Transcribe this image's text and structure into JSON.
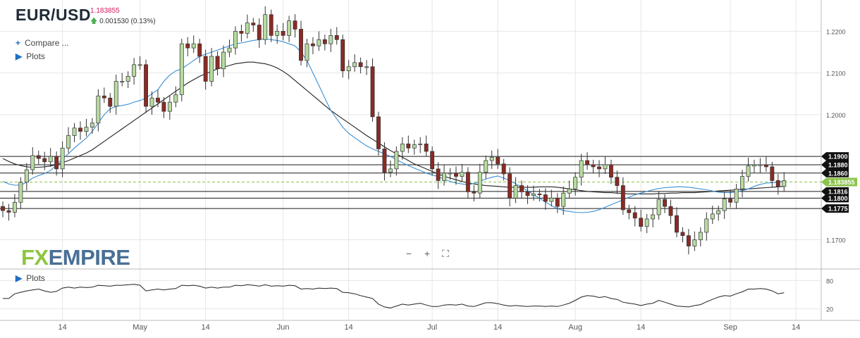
{
  "header": {
    "symbol": "EUR/USD",
    "last_price": "1.183855",
    "change": "0.001530 (0.13%)",
    "compare_label": "Compare ...",
    "plots_label": "Plots",
    "sub_plots_label": "Plots",
    "logo_fx": "FX",
    "logo_empire": "EMPIRE"
  },
  "zoom": {
    "minus": "−",
    "plus": "+",
    "fit": "⛶"
  },
  "colors": {
    "up": "#b7dba0",
    "down": "#8b2a24",
    "ema_fast": "#3b8fd3",
    "ema_slow": "#222222",
    "price_tag": "#8bc34a",
    "grid": "#e6e6e6",
    "level": "#1a1a1a",
    "current": "#8bc34a"
  },
  "chart_data": {
    "type": "candlestick",
    "title": "EUR/USD",
    "ylim": [
      1.163,
      1.2275
    ],
    "y_ticks": [
      {
        "value": 1.22,
        "label": "1.2200"
      },
      {
        "value": 1.21,
        "label": "1.2100"
      },
      {
        "value": 1.2,
        "label": "1.2000"
      },
      {
        "value": 1.17,
        "label": "1.1700"
      }
    ],
    "x_ticks": [
      {
        "index": 10,
        "label": "14"
      },
      {
        "index": 23,
        "label": "May"
      },
      {
        "index": 34,
        "label": "14"
      },
      {
        "index": 47,
        "label": "Jun"
      },
      {
        "index": 58,
        "label": "14"
      },
      {
        "index": 72,
        "label": "Jul"
      },
      {
        "index": 83,
        "label": "14"
      },
      {
        "index": 96,
        "label": "Aug"
      },
      {
        "index": 107,
        "label": "14"
      },
      {
        "index": 122,
        "label": "Sep"
      },
      {
        "index": 133,
        "label": "14"
      }
    ],
    "levels": [
      {
        "value": 1.19,
        "label": "1.1900"
      },
      {
        "value": 1.188,
        "label": "1.1880"
      },
      {
        "value": 1.186,
        "label": "1.1860"
      },
      {
        "value": 1.1816,
        "label": "1.1816"
      },
      {
        "value": 1.18,
        "label": "1.1800"
      },
      {
        "value": 1.1775,
        "label": "1.1775"
      }
    ],
    "current": {
      "value": 1.183855,
      "label": "1.183855"
    },
    "closes": [
      1.177,
      1.1766,
      1.179,
      1.1838,
      1.1868,
      1.1902,
      1.1895,
      1.1887,
      1.19,
      1.187,
      1.192,
      1.195,
      1.1968,
      1.196,
      1.197,
      1.198,
      1.2045,
      1.204,
      1.202,
      1.208,
      1.208,
      1.2092,
      1.212,
      1.212,
      1.202,
      1.204,
      1.203,
      1.2008,
      1.203,
      1.2048,
      1.217,
      1.216,
      1.217,
      1.214,
      1.208,
      1.214,
      1.211,
      1.215,
      1.216,
      1.22,
      1.2195,
      1.222,
      1.2215,
      1.218,
      1.224,
      1.219,
      1.22,
      1.219,
      1.2225,
      1.2205,
      1.213,
      1.217,
      1.2165,
      1.218,
      1.217,
      1.219,
      1.218,
      1.2105,
      1.2115,
      1.2125,
      1.2115,
      1.2115,
      1.1995,
      1.1918,
      1.1862,
      1.187,
      1.1912,
      1.193,
      1.192,
      1.1928,
      1.193,
      1.1912,
      1.187,
      1.1842,
      1.186,
      1.186,
      1.1852,
      1.1862,
      1.1815,
      1.1812,
      1.1862,
      1.189,
      1.1898,
      1.1882,
      1.1858,
      1.18,
      1.183,
      1.1815,
      1.1806,
      1.181,
      1.1808,
      1.1792,
      1.18,
      1.178,
      1.1812,
      1.1822,
      1.185,
      1.189,
      1.188,
      1.1875,
      1.187,
      1.188,
      1.185,
      1.183,
      1.1772,
      1.1765,
      1.1752,
      1.1732,
      1.175,
      1.176,
      1.1797,
      1.178,
      1.1758,
      1.1718,
      1.171,
      1.1685,
      1.17,
      1.1718,
      1.175,
      1.1762,
      1.177,
      1.1798,
      1.179,
      1.1822,
      1.1852,
      1.1877,
      1.188,
      1.188,
      1.1875,
      1.1842,
      1.1828,
      1.1842
    ],
    "opens_first": 1.178,
    "ema20": [
      1.184,
      1.1834,
      1.1831,
      1.1831,
      1.1838,
      1.1848,
      1.1854,
      1.1859,
      1.1866,
      1.188,
      1.1894,
      1.1906,
      1.192,
      1.1932,
      1.1944,
      1.196,
      1.198,
      1.2,
      1.2014,
      1.202,
      1.2022,
      1.2025,
      1.203,
      1.2034,
      1.204,
      1.205,
      1.206,
      1.208,
      1.2095,
      1.2105,
      1.211,
      1.212,
      1.213,
      1.214,
      1.2145,
      1.215,
      1.2155,
      1.216,
      1.2165,
      1.217,
      1.2172,
      1.2175,
      1.2178,
      1.218,
      1.2182,
      1.218,
      1.2178,
      1.2175,
      1.217,
      1.2165,
      1.215,
      1.213,
      1.21,
      1.207,
      1.204,
      1.201,
      1.199,
      1.197,
      1.1955,
      1.1945,
      1.1935,
      1.1925,
      1.1918,
      1.1912,
      1.1906,
      1.19,
      1.1892,
      1.1885,
      1.1878,
      1.1872,
      1.1866,
      1.186,
      1.1855,
      1.1852,
      1.1845,
      1.184,
      1.1836,
      1.1834,
      1.1832,
      1.1835,
      1.184,
      1.1846,
      1.185,
      1.1853,
      1.1848,
      1.1842,
      1.1834,
      1.1826,
      1.1818,
      1.1808,
      1.18,
      1.179,
      1.1782,
      1.1775,
      1.177,
      1.1768,
      1.1766,
      1.1765,
      1.1766,
      1.1768,
      1.1772,
      1.1778,
      1.1784,
      1.179,
      1.1796,
      1.1802,
      1.1808,
      1.1812,
      1.1816,
      1.182,
      1.1823,
      1.1825,
      1.1826,
      1.1827,
      1.1827,
      1.1826,
      1.1824,
      1.1822,
      1.182,
      1.1817,
      1.1814,
      1.1813,
      1.1813,
      1.1815,
      1.1818,
      1.1822,
      1.1828,
      1.1833,
      1.1836,
      1.1837,
      1.1838,
      1.184
    ],
    "ema50": [
      1.1895,
      1.1888,
      1.1882,
      1.1878,
      1.1875,
      1.1874,
      1.1874,
      1.1875,
      1.1877,
      1.188,
      1.1885,
      1.189,
      1.1896,
      1.1902,
      1.1908,
      1.1916,
      1.1926,
      1.1936,
      1.1946,
      1.1956,
      1.1966,
      1.1976,
      1.1986,
      1.1996,
      1.2006,
      1.2016,
      1.2026,
      1.2036,
      1.2046,
      1.2056,
      1.2066,
      1.2076,
      1.2084,
      1.2092,
      1.2098,
      1.2104,
      1.211,
      1.2114,
      1.2118,
      1.2122,
      1.2124,
      1.2126,
      1.2126,
      1.2124,
      1.2122,
      1.2118,
      1.2112,
      1.2104,
      1.2094,
      1.2082,
      1.207,
      1.2058,
      1.2046,
      1.2034,
      1.2022,
      1.201,
      1.2,
      1.199,
      1.198,
      1.197,
      1.196,
      1.195,
      1.1941,
      1.1932,
      1.1923,
      1.1914,
      1.1906,
      1.1898,
      1.189,
      1.1882,
      1.1876,
      1.187,
      1.1864,
      1.1858,
      1.1852,
      1.1848,
      1.1844,
      1.184,
      1.1836,
      1.1834,
      1.1832,
      1.183,
      1.1829,
      1.1828,
      1.1827,
      1.1826,
      1.1826,
      1.1826,
      1.1826,
      1.1826,
      1.1827,
      1.1827,
      1.1827,
      1.1826,
      1.1824,
      1.1822,
      1.182,
      1.1818,
      1.1816,
      1.1815,
      1.1814,
      1.1813,
      1.1813,
      1.1812,
      1.1811,
      1.181,
      1.181,
      1.181,
      1.181,
      1.181,
      1.1811,
      1.1811,
      1.1812,
      1.1812,
      1.1813,
      1.1813,
      1.1813,
      1.1814,
      1.1815,
      1.1816,
      1.1817,
      1.1818,
      1.1819,
      1.182,
      1.1821,
      1.1822,
      1.1823,
      1.1824,
      1.1825,
      1.1826,
      1.1827,
      1.1828
    ],
    "sub_indicator": {
      "ylim": [
        0,
        100
      ],
      "y_ticks": [
        {
          "value": 80,
          "label": "80"
        },
        {
          "value": 20,
          "label": "20"
        }
      ],
      "values": [
        42,
        42,
        52,
        55,
        58,
        60,
        62,
        58,
        55,
        57,
        64,
        66,
        64,
        66,
        65,
        66,
        70,
        69,
        68,
        70,
        70,
        71,
        72,
        70,
        58,
        60,
        62,
        60,
        62,
        63,
        70,
        69,
        70,
        68,
        64,
        66,
        64,
        66,
        66,
        70,
        69,
        71,
        70,
        68,
        71,
        68,
        69,
        68,
        70,
        69,
        62,
        63,
        62,
        64,
        63,
        64,
        63,
        55,
        54,
        52,
        48,
        45,
        42,
        30,
        24,
        22,
        26,
        30,
        28,
        30,
        32,
        28,
        25,
        25,
        28,
        29,
        28,
        30,
        26,
        25,
        29,
        33,
        33,
        31,
        28,
        26,
        27,
        26,
        25,
        26,
        26,
        25,
        26,
        25,
        28,
        32,
        38,
        45,
        48,
        47,
        44,
        46,
        42,
        40,
        34,
        32,
        30,
        27,
        30,
        32,
        38,
        34,
        30,
        26,
        25,
        24,
        27,
        29,
        35,
        40,
        45,
        48,
        47,
        52,
        56,
        62,
        62,
        63,
        62,
        58,
        52,
        54
      ]
    }
  }
}
